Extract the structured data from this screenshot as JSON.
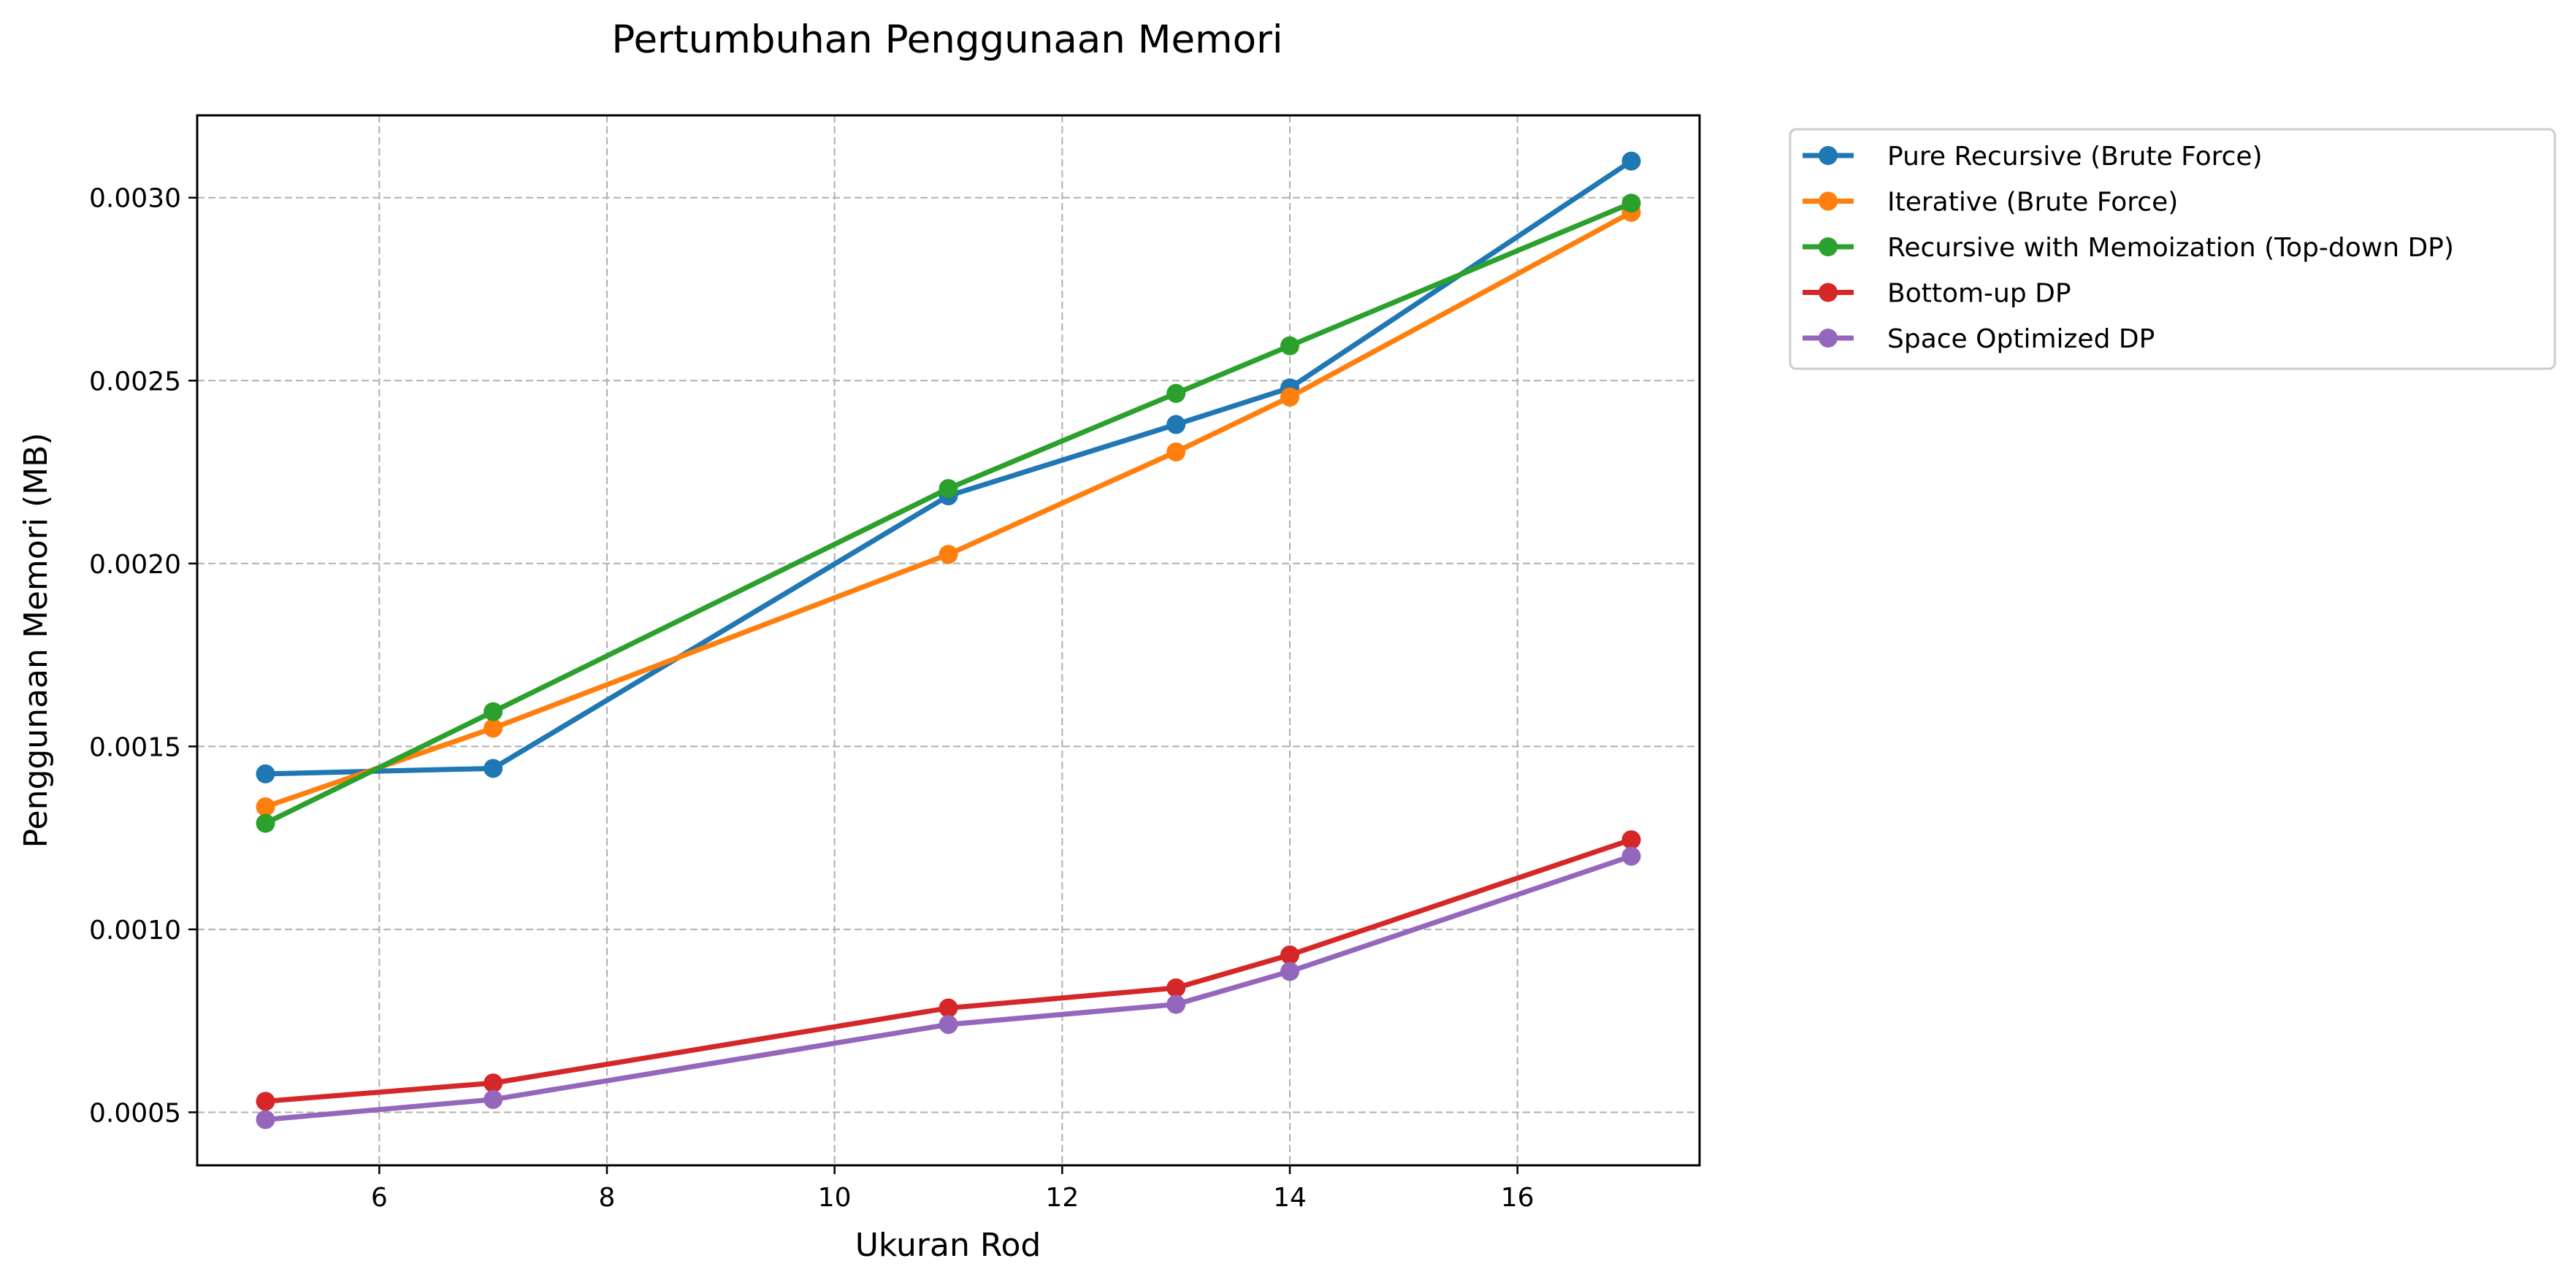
{
  "chart_data": {
    "type": "line",
    "title": "Pertumbuhan Penggunaan Memori",
    "xlabel": "Ukuran Rod",
    "ylabel": "Penggunaan Memori (MB)",
    "x": [
      5,
      7,
      11,
      13,
      14,
      17
    ],
    "xlim": [
      4.4,
      17.6
    ],
    "ylim": [
      0.000355,
      0.003225
    ],
    "xticks": [
      6,
      8,
      10,
      12,
      14,
      16
    ],
    "xtick_labels": [
      "6",
      "8",
      "10",
      "12",
      "14",
      "16"
    ],
    "yticks": [
      0.0005,
      0.001,
      0.0015,
      0.002,
      0.0025,
      0.003
    ],
    "ytick_labels": [
      "0.0005",
      "0.0010",
      "0.0015",
      "0.0020",
      "0.0025",
      "0.0030"
    ],
    "grid": true,
    "legend_position": "outside-top-right",
    "series": [
      {
        "name": "Pure Recursive (Brute Force)",
        "color": "#1f77b4",
        "values": [
          0.001425,
          0.00144,
          0.002185,
          0.00238,
          0.00248,
          0.0031
        ]
      },
      {
        "name": "Iterative (Brute Force)",
        "color": "#ff7f0e",
        "values": [
          0.001335,
          0.00155,
          0.002025,
          0.002305,
          0.002455,
          0.00296
        ]
      },
      {
        "name": "Recursive with Memoization (Top-down DP)",
        "color": "#2ca02c",
        "values": [
          0.00129,
          0.001595,
          0.002205,
          0.002465,
          0.002595,
          0.002985
        ]
      },
      {
        "name": "Bottom-up DP",
        "color": "#d62728",
        "values": [
          0.00053,
          0.00058,
          0.000785,
          0.00084,
          0.00093,
          0.001245
        ]
      },
      {
        "name": "Space Optimized DP",
        "color": "#9467bd",
        "values": [
          0.00048,
          0.000535,
          0.00074,
          0.000795,
          0.000885,
          0.0012
        ]
      }
    ]
  }
}
